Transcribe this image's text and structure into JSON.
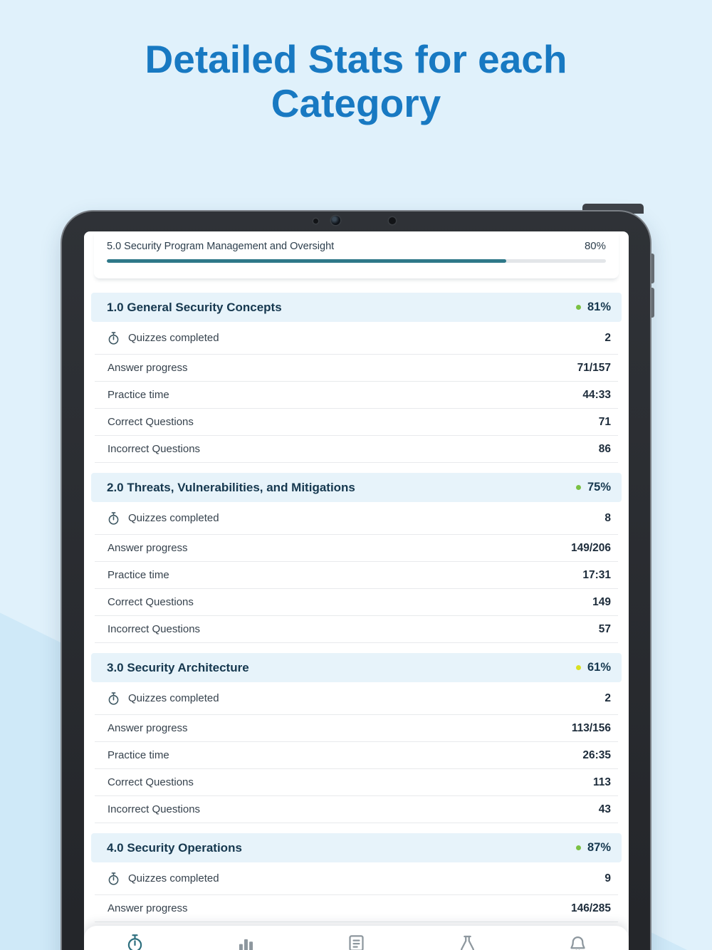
{
  "page": {
    "heading_line1": "Detailed Stats for each",
    "heading_line2": "Category"
  },
  "colors": {
    "accent_blue": "#1879c2",
    "progress_teal": "#2e7889",
    "status_green": "#7ac143",
    "status_yellow": "#d9e021"
  },
  "screen": {
    "top_item": {
      "label": "5.0 Security Program Management and Oversight",
      "percent_text": "80%",
      "progress_percent": 80
    },
    "categories": [
      {
        "title": "1.0 General Security Concepts",
        "percent_text": "81%",
        "dot_color": "#7ac143",
        "rows": [
          {
            "label": "Quizzes completed",
            "value": "2",
            "icon": "stopwatch-icon"
          },
          {
            "label": "Answer progress",
            "value": "71/157"
          },
          {
            "label": "Practice time",
            "value": "44:33"
          },
          {
            "label": "Correct Questions",
            "value": "71"
          },
          {
            "label": "Incorrect Questions",
            "value": "86"
          }
        ]
      },
      {
        "title": "2.0 Threats, Vulnerabilities, and Mitigations",
        "percent_text": "75%",
        "dot_color": "#7ac143",
        "rows": [
          {
            "label": "Quizzes completed",
            "value": "8",
            "icon": "stopwatch-icon"
          },
          {
            "label": "Answer progress",
            "value": "149/206"
          },
          {
            "label": "Practice time",
            "value": "17:31"
          },
          {
            "label": "Correct Questions",
            "value": "149"
          },
          {
            "label": "Incorrect Questions",
            "value": "57"
          }
        ]
      },
      {
        "title": "3.0 Security Architecture",
        "percent_text": "61%",
        "dot_color": "#d9e021",
        "rows": [
          {
            "label": "Quizzes completed",
            "value": "2",
            "icon": "stopwatch-icon"
          },
          {
            "label": "Answer progress",
            "value": "113/156"
          },
          {
            "label": "Practice time",
            "value": "26:35"
          },
          {
            "label": "Correct Questions",
            "value": "113"
          },
          {
            "label": "Incorrect Questions",
            "value": "43"
          }
        ]
      },
      {
        "title": "4.0 Security Operations",
        "percent_text": "87%",
        "dot_color": "#7ac143",
        "rows": [
          {
            "label": "Quizzes completed",
            "value": "9",
            "icon": "stopwatch-icon"
          },
          {
            "label": "Answer progress",
            "value": "146/285"
          }
        ]
      }
    ],
    "tab_bar": {
      "items": [
        {
          "icon": "stopwatch-icon",
          "active": true
        },
        {
          "icon": "chart-icon",
          "active": false
        },
        {
          "icon": "quiz-list-icon",
          "active": false
        },
        {
          "icon": "flask-icon",
          "active": false
        },
        {
          "icon": "bell-icon",
          "active": false
        }
      ]
    }
  }
}
